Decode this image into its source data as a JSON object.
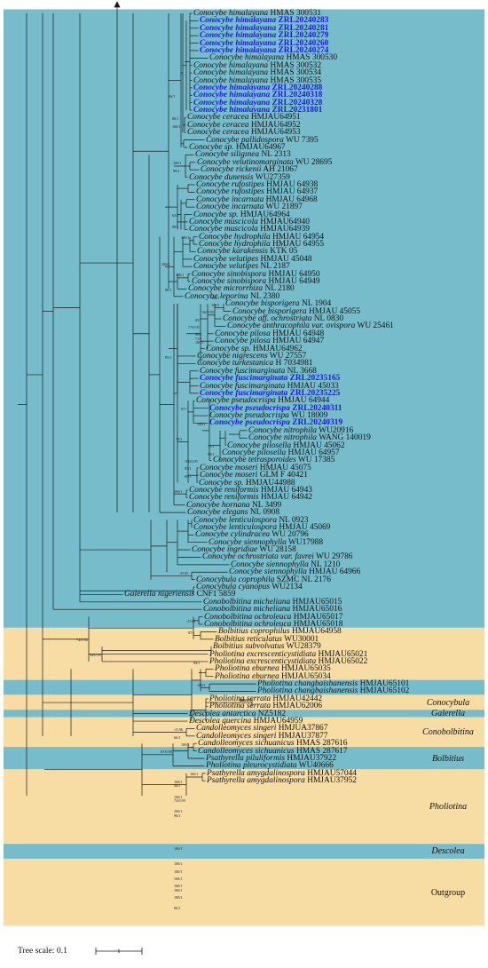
{
  "tree_scale_label": "Tree scale: 0.1",
  "bands": [
    {
      "from": 0,
      "to": 82,
      "color": "#76bccb"
    },
    {
      "from": 83,
      "to": 89,
      "color": "#f7dca4"
    },
    {
      "from": 90,
      "to": 91,
      "color": "#76bccb"
    },
    {
      "from": 92,
      "to": 93,
      "color": "#f7dca4"
    },
    {
      "from": 94,
      "to": 94,
      "color": "#76bccb"
    },
    {
      "from": 95,
      "to": 98,
      "color": "#f7dca4"
    },
    {
      "from": 99,
      "to": 101,
      "color": "#76bccb"
    },
    {
      "from": 102,
      "to": 111,
      "color": "#f7dca4"
    },
    {
      "from": 112,
      "to": 113,
      "color": "#76bccb"
    },
    {
      "from": 114,
      "to": 122,
      "color": "#f7dca4"
    }
  ],
  "groups": [
    {
      "label": "Conocybula",
      "row": 92.5,
      "italic": true
    },
    {
      "label": "Galerella",
      "row": 94,
      "italic": true
    },
    {
      "label": "Conobolbitina",
      "row": 96.5,
      "italic": true
    },
    {
      "label": "Bolbitius",
      "row": 100,
      "italic": true
    },
    {
      "label": "Pholiotina",
      "row": 106.5,
      "italic": true
    },
    {
      "label": "Descolea",
      "row": 112.5,
      "italic": true
    },
    {
      "label": "Outgroup",
      "row": 118,
      "italic": false
    }
  ],
  "taxa": [
    {
      "genus": "Conocybe",
      "epithet": "himalayana",
      "voucher": "HMAS 300531",
      "highlight": false
    },
    {
      "genus": "Conocybe",
      "epithet": "himalayana",
      "voucher": "ZRL20240283",
      "highlight": true
    },
    {
      "genus": "Conocybe",
      "epithet": "himalayana",
      "voucher": "ZRL20240281",
      "highlight": true
    },
    {
      "genus": "Conocybe",
      "epithet": "himalayana",
      "voucher": "ZRL20240279",
      "highlight": true
    },
    {
      "genus": "Conocybe",
      "epithet": "himalayana",
      "voucher": "ZRL20240260",
      "highlight": true
    },
    {
      "genus": "Conocybe",
      "epithet": "himalayana",
      "voucher": "ZRL20240274",
      "highlight": true
    },
    {
      "genus": "Conocybe",
      "epithet": "himalayana",
      "voucher": "HMAS 300530",
      "highlight": false
    },
    {
      "genus": "Conocybe",
      "epithet": "himalayana",
      "voucher": "HMAS 300532",
      "highlight": false
    },
    {
      "genus": "Conocybe",
      "epithet": "himalayana",
      "voucher": "HMAS 300534",
      "highlight": false
    },
    {
      "genus": "Conocybe",
      "epithet": "himalayana",
      "voucher": "HMAS 300535",
      "highlight": false
    },
    {
      "genus": "Conocybe",
      "epithet": "himalayana",
      "voucher": "ZRL20240288",
      "highlight": true
    },
    {
      "genus": "Conocybe",
      "epithet": "himalayana",
      "voucher": "ZRL20240318",
      "highlight": true
    },
    {
      "genus": "Conocybe",
      "epithet": "himalayana",
      "voucher": "ZRL20240328",
      "highlight": true
    },
    {
      "genus": "Conocybe",
      "epithet": "himalayana",
      "voucher": "ZRL20231801",
      "highlight": true
    },
    {
      "genus": "Conocybe",
      "epithet": "ceracea",
      "voucher": "HMJAU64951",
      "highlight": false
    },
    {
      "genus": "Conocybe",
      "epithet": "ceracea",
      "voucher": "HMJAU64952",
      "highlight": false
    },
    {
      "genus": "Conocybe",
      "epithet": "ceracea",
      "voucher": "HMJAU64953",
      "highlight": false
    },
    {
      "genus": "Conocybe",
      "epithet": "pallidospora",
      "voucher": "WU 7395",
      "highlight": false
    },
    {
      "genus": "Conocybe",
      "epithet": "sp.",
      "voucher": "HMJAU64967",
      "highlight": false
    },
    {
      "genus": "Conocybe",
      "epithet": "siligınea",
      "voucher": "NL 2313",
      "highlight": false
    },
    {
      "genus": "Conocybe",
      "epithet": "velutinomarginata",
      "voucher": "WU 28695",
      "highlight": false
    },
    {
      "genus": "Conocybe",
      "epithet": "rickenii",
      "voucher": "AH 21067",
      "highlight": false
    },
    {
      "genus": "Conocybe",
      "epithet": "dunensis",
      "voucher": "WU27359",
      "highlight": false
    },
    {
      "genus": "Conocybe",
      "epithet": "rufostipes",
      "voucher": "HMJAU 64938",
      "highlight": false
    },
    {
      "genus": "Conocybe",
      "epithet": "rufostipes",
      "voucher": "HMJAU 64937",
      "highlight": false
    },
    {
      "genus": "Conocybe",
      "epithet": "incarnata",
      "voucher": "HMJAU 64968",
      "highlight": false
    },
    {
      "genus": "Conocybe",
      "epithet": "incarnata",
      "voucher": "WU 21897",
      "highlight": false
    },
    {
      "genus": "Conocybe",
      "epithet": "sp.",
      "voucher": "HMJAU64964",
      "highlight": false
    },
    {
      "genus": "Conocybe",
      "epithet": "muscicola",
      "voucher": "HMJAU64940",
      "highlight": false
    },
    {
      "genus": "Conocybe",
      "epithet": "muscicola",
      "voucher": "HMJAU64939",
      "highlight": false
    },
    {
      "genus": "Conocybe",
      "epithet": "hydrophila",
      "voucher": "HMJAU 64954",
      "highlight": false
    },
    {
      "genus": "Conocybe",
      "epithet": "hydrophila",
      "voucher": "HMJAU 64955",
      "highlight": false
    },
    {
      "genus": "Conocybe",
      "epithet": "karakensis",
      "voucher": "KTK 05",
      "highlight": false
    },
    {
      "genus": "Conocybe",
      "epithet": "velutipes",
      "voucher": "HMJAU 45048",
      "highlight": false
    },
    {
      "genus": "Conocybe",
      "epithet": "velutipes",
      "voucher": "NL 2187",
      "highlight": false
    },
    {
      "genus": "Conocybe",
      "epithet": "sinobispora",
      "voucher": "HMJAU 64950",
      "highlight": false
    },
    {
      "genus": "Conocybe",
      "epithet": "sinobispora",
      "voucher": "HMJAU 64949",
      "highlight": false
    },
    {
      "genus": "Conocybe",
      "epithet": "microrrhiza",
      "voucher": "NL 2180",
      "highlight": false
    },
    {
      "genus": "Conocybe",
      "epithet": "leporina",
      "voucher": "NL 2380",
      "highlight": false
    },
    {
      "genus": "Conocybe",
      "epithet": "bisporigera",
      "voucher": "NL 1904",
      "highlight": false
    },
    {
      "genus": "Conocybe",
      "epithet": "bisporigera",
      "voucher": "HMJAU 45055",
      "highlight": false
    },
    {
      "genus": "Conocybe",
      "epithet": "aff. ochrostriata",
      "voucher": "NL 0830",
      "highlight": false
    },
    {
      "genus": "Conocybe",
      "epithet": "anthracophila var. ovispora",
      "voucher": "WU 25461",
      "highlight": false
    },
    {
      "genus": "Conocybe",
      "epithet": "pilosa",
      "voucher": "HMJAU 64948",
      "highlight": false
    },
    {
      "genus": "Conocybe",
      "epithet": "pilosa",
      "voucher": "HMJAU 64947",
      "highlight": false
    },
    {
      "genus": "Conocybe",
      "epithet": "sp.",
      "voucher": "HMJAU64962",
      "highlight": false
    },
    {
      "genus": "Conocybe",
      "epithet": "nigrescens",
      "voucher": "WU 27557",
      "highlight": false
    },
    {
      "genus": "Conocybe",
      "epithet": "turkestanica",
      "voucher": "H 7034981",
      "highlight": false
    },
    {
      "genus": "Conocybe",
      "epithet": "fuscimarginata",
      "voucher": "NL 3668",
      "highlight": false
    },
    {
      "genus": "Conocybe",
      "epithet": "fuscimarginata",
      "voucher": "ZRL20235165",
      "highlight": true
    },
    {
      "genus": "Conocybe",
      "epithet": "fuscimarginata",
      "voucher": "HMJAU 45033",
      "highlight": false
    },
    {
      "genus": "Conocybe",
      "epithet": "fuscimarginata",
      "voucher": "ZRL20235225",
      "highlight": true
    },
    {
      "genus": "Conocybe",
      "epithet": "pseudocrispa",
      "voucher": "HMJAU 64944",
      "highlight": false
    },
    {
      "genus": "Conocybe",
      "epithet": "pseudocrispa",
      "voucher": "ZRL20240311",
      "highlight": true
    },
    {
      "genus": "Conocybe",
      "epithet": "pseudocrispa",
      "voucher": "WU 18009",
      "highlight": false
    },
    {
      "genus": "Conocybe",
      "epithet": "pseudocrispa",
      "voucher": "ZRL20240319",
      "highlight": true
    },
    {
      "genus": "Conocybe",
      "epithet": "nitrophila",
      "voucher": "WU20916",
      "highlight": false
    },
    {
      "genus": "Conocybe",
      "epithet": "nitrophila",
      "voucher": "WANG 140019",
      "highlight": false
    },
    {
      "genus": "Conocybe",
      "epithet": "pilosella",
      "voucher": "HMJAU 45062",
      "highlight": false
    },
    {
      "genus": "Conocybe",
      "epithet": "pilosella",
      "voucher": "HMJAU 64957",
      "highlight": false
    },
    {
      "genus": "Conocybe",
      "epithet": "tetrasporoides",
      "voucher": "WU 17385",
      "highlight": false
    },
    {
      "genus": "Conocybe",
      "epithet": "moseri",
      "voucher": "HMJAU 45075",
      "highlight": false
    },
    {
      "genus": "Conocybe",
      "epithet": "moseri",
      "voucher": "GLM F 40421",
      "highlight": false
    },
    {
      "genus": "Conocybe",
      "epithet": "sp.",
      "voucher": "HMJAU44988",
      "highlight": false
    },
    {
      "genus": "Conocybe",
      "epithet": "reniformis",
      "voucher": "HMJAU 64943",
      "highlight": false
    },
    {
      "genus": "Conocybe",
      "epithet": "reniformis",
      "voucher": "HMJAU 64942",
      "highlight": false
    },
    {
      "genus": "Conocybe",
      "epithet": "hornana",
      "voucher": "NL 3499",
      "highlight": false
    },
    {
      "genus": "Conocybe",
      "epithet": "elegans",
      "voucher": "NL 0908",
      "highlight": false
    },
    {
      "genus": "Conocybe",
      "epithet": "lenticulospora",
      "voucher": "NL 0923",
      "highlight": false
    },
    {
      "genus": "Conocybe",
      "epithet": "lenticulospora",
      "voucher": "HMJAU 45069",
      "highlight": false
    },
    {
      "genus": "Conocybe",
      "epithet": "cylindracea",
      "voucher": "WU 20796",
      "highlight": false
    },
    {
      "genus": "Conocybe",
      "epithet": "siennophylla",
      "voucher": "WU17988",
      "highlight": false
    },
    {
      "genus": "Conocybe",
      "epithet": "ingridiae",
      "voucher": "WU 28158",
      "highlight": false
    },
    {
      "genus": "Conocybe",
      "epithet": "ochrostriata var. favrei",
      "voucher": "WU 29786",
      "highlight": false
    },
    {
      "genus": "Conocybe",
      "epithet": "siennophylla",
      "voucher": "NL 1210",
      "highlight": false
    },
    {
      "genus": "Conocybe",
      "epithet": "siennophylla",
      "voucher": "HMJAU 64966",
      "highlight": false
    },
    {
      "genus": "Conocybula",
      "epithet": "coprophila",
      "voucher": "SZMC NL 2176",
      "highlight": false
    },
    {
      "genus": "Conocybula",
      "epithet": "cyanopus",
      "voucher": "WU2134",
      "highlight": false
    },
    {
      "genus": "Galerella",
      "epithet": "nigeriensis",
      "voucher": "CNF1 5859",
      "highlight": false
    },
    {
      "genus": "Conobolbitina",
      "epithet": "micheliana",
      "voucher": "HMJAU65015",
      "highlight": false
    },
    {
      "genus": "Conobolbitina",
      "epithet": "micheliana",
      "voucher": "HMJAU65016",
      "highlight": false
    },
    {
      "genus": "Conobolbitina",
      "epithet": "ochroleuca",
      "voucher": "HMJAU65017",
      "highlight": false
    },
    {
      "genus": "Conobolbitina",
      "epithet": "ochroleuca",
      "voucher": "HMJAU65018",
      "highlight": false
    },
    {
      "genus": "Bolbitius",
      "epithet": "coprophilus",
      "voucher": "HMJAU64958",
      "highlight": false
    },
    {
      "genus": "Bolbitius",
      "epithet": "reticulatus",
      "voucher": "WU30001",
      "highlight": false
    },
    {
      "genus": "Bolbitius",
      "epithet": "subvolvatus",
      "voucher": "WU28379",
      "highlight": false
    },
    {
      "genus": "Pholiotina",
      "epithet": "excrescenticystidiata",
      "voucher": "HMJAU65021",
      "highlight": false
    },
    {
      "genus": "Pholiotina",
      "epithet": "excrescenticystidiata",
      "voucher": "HMJAU65022",
      "highlight": false
    },
    {
      "genus": "Pholiotina",
      "epithet": "eburnea",
      "voucher": "HMJAU65035",
      "highlight": false
    },
    {
      "genus": "Pholiotina",
      "epithet": "eburnea",
      "voucher": "HMJAU65034",
      "highlight": false
    },
    {
      "genus": "Pholiotina",
      "epithet": "changbaishanensis",
      "voucher": "HMJAU65101",
      "highlight": false
    },
    {
      "genus": "Pholiotina",
      "epithet": "changbaishanensis",
      "voucher": "HMJAU65102",
      "highlight": false
    },
    {
      "genus": "Pholiotina",
      "epithet": "serrata",
      "voucher": "HMJAU42442",
      "highlight": false
    },
    {
      "genus": "Pholiotina",
      "epithet": "serrata",
      "voucher": "HMJAU62006",
      "highlight": false
    },
    {
      "genus": "Descolea",
      "epithet": "antarctica",
      "voucher": "NZ5182",
      "highlight": false
    },
    {
      "genus": "Descolea",
      "epithet": "quercina",
      "voucher": "HMJAU64959",
      "highlight": false
    },
    {
      "genus": "Candolleomyces",
      "epithet": "singeri",
      "voucher": "HMJUA37867",
      "highlight": false
    },
    {
      "genus": "Candolleomyces",
      "epithet": "singeri",
      "voucher": "HMJAU37877",
      "highlight": false
    },
    {
      "genus": "Candolleomyces",
      "epithet": "sichuanicus",
      "voucher": "HMAS 287616",
      "highlight": false
    },
    {
      "genus": "Candolleomyces",
      "epithet": "sichuanicus",
      "voucher": "HMAS 287617",
      "highlight": false
    },
    {
      "genus": "Psathyrella",
      "epithet": "piluliformis",
      "voucher": "HMJAU37922",
      "highlight": false
    },
    {
      "genus": "Pholiotina",
      "epithet": "pleurocystidiata",
      "voucher": "WU40666",
      "highlight": false
    },
    {
      "genus": "Psathyrella",
      "epithet": "amygdalinospora",
      "voucher": "HMJAU57044",
      "highlight": false
    },
    {
      "genus": "Psathyrella",
      "epithet": "amygdalinospora",
      "voucher": "HMJAU37952",
      "highlight": false
    }
  ],
  "support_labels": [
    {
      "text": "96/1",
      "row": 11.5
    },
    {
      "text": "80/1",
      "row": 14.5
    },
    {
      "text": "100/1",
      "row": 15.5
    },
    {
      "text": "100/1",
      "row": 20.5
    },
    {
      "text": "99/1",
      "row": 21.5
    },
    {
      "text": "65/1",
      "row": 27.5
    },
    {
      "text": "98/1",
      "row": 29
    },
    {
      "text": "100/1",
      "row": 30.5
    },
    {
      "text": "100/1",
      "row": 34
    },
    {
      "text": "100/1",
      "row": 35.5
    },
    {
      "text": "86/1",
      "row": 37.5
    },
    {
      "text": "100/1",
      "row": 39.5
    },
    {
      "text": "96/0.99",
      "row": 40.5
    },
    {
      "text": "85/-",
      "row": 41.5
    },
    {
      "text": "77/0.95",
      "row": 42.5
    },
    {
      "text": "99/1",
      "row": 43.5
    },
    {
      "text": "100/1",
      "row": 44.5
    },
    {
      "text": "85/1",
      "row": 46.5
    },
    {
      "text": "100/1",
      "row": 55.5
    },
    {
      "text": "70/1",
      "row": 57.5
    },
    {
      "text": "71/1",
      "row": 58.5
    },
    {
      "text": "98/1",
      "row": 59.5
    },
    {
      "text": "95/1",
      "row": 61.5
    },
    {
      "text": "89/1",
      "row": 62.5
    },
    {
      "text": "100/1",
      "row": 64.5
    },
    {
      "text": "87/-",
      "row": 53.5
    },
    {
      "text": "100/0.95",
      "row": 60.5
    },
    {
      "text": "71/1",
      "row": 44
    },
    {
      "text": "100/1",
      "row": 38.5
    },
    {
      "text": "-/0.93",
      "row": 75.5
    },
    {
      "text": "87/1",
      "row": 83.5
    },
    {
      "text": "74/0.92",
      "row": 84.5
    },
    {
      "text": "94/0.99",
      "row": 86.5
    },
    {
      "text": "99/1",
      "row": 87.5
    },
    {
      "text": "100/1",
      "row": 90.5
    },
    {
      "text": "100/1",
      "row": 92.5
    },
    {
      "text": "-/0.96",
      "row": 96.5
    },
    {
      "text": "100/1",
      "row": 98.5
    },
    {
      "text": "87/0.98",
      "row": 99.5
    },
    {
      "text": "66/1",
      "row": 97.5
    },
    {
      "text": "100/1",
      "row": 102.5
    },
    {
      "text": "100/1",
      "row": 103.5
    },
    {
      "text": "100/1",
      "row": 105.5
    },
    {
      "text": "98/1",
      "row": 104
    },
    {
      "text": "74/0.99",
      "row": 106
    },
    {
      "text": "100/1",
      "row": 107.5
    },
    {
      "text": "96/1",
      "row": 108
    },
    {
      "text": "100/1",
      "row": 112.5
    },
    {
      "text": "100/1",
      "row": 114.5
    },
    {
      "text": "100/1",
      "row": 115.5
    },
    {
      "text": "100/1",
      "row": 116.5
    },
    {
      "text": "100/1",
      "row": 119
    },
    {
      "text": "96/1",
      "row": 120.5
    },
    {
      "text": "100/1",
      "row": 118
    },
    {
      "text": "100/1",
      "row": 117.5
    },
    {
      "text": "83/0.99",
      "row": 92.5
    },
    {
      "text": "-/0.93",
      "row": 82
    }
  ]
}
